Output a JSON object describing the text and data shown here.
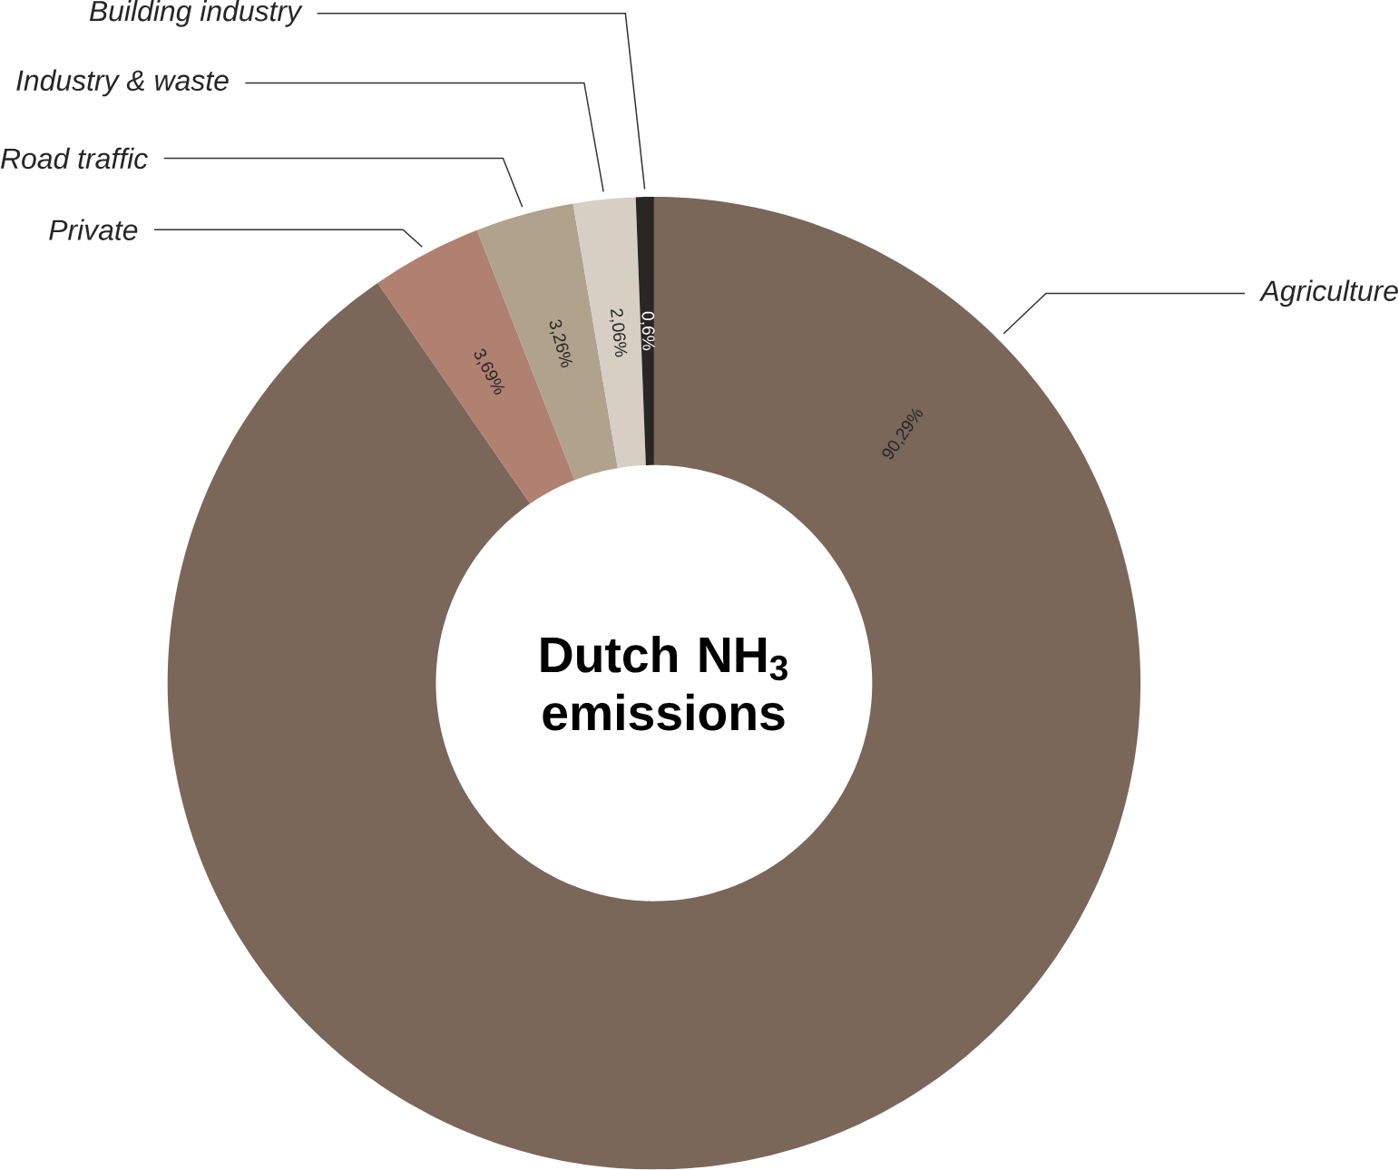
{
  "chart_data": {
    "type": "donut",
    "title": "Dutch NH$_{3}$ emissions",
    "categories": [
      "Agriculture",
      "Private",
      "Road traffic",
      "Industry & waste",
      "Building industry"
    ],
    "values": [
      90.29,
      3.69,
      3.26,
      2.06,
      0.6
    ],
    "value_labels": [
      "90,29%",
      "3,69%",
      "3,26%",
      "2,06%",
      "0,6%"
    ],
    "colors": [
      "#7a675a",
      "#b08070",
      "#b0a28c",
      "#d8cfc4",
      "#2a2624"
    ]
  }
}
